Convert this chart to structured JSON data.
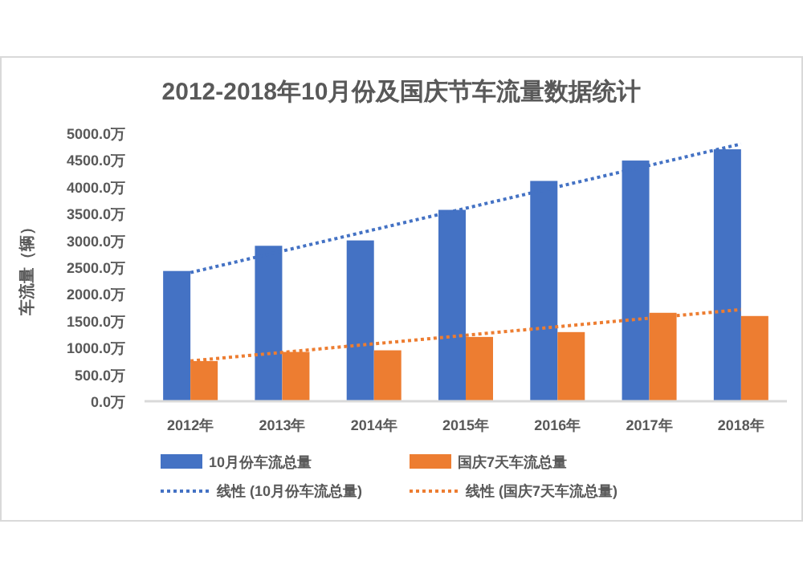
{
  "chart_data": {
    "type": "bar",
    "title": "2012-2018年10月份及国庆节车流量数据统计",
    "ylabel": "车流量（辆）",
    "categories": [
      "2012年",
      "2013年",
      "2014年",
      "2015年",
      "2016年",
      "2017年",
      "2018年"
    ],
    "series": [
      {
        "name": "10月份车流总量",
        "color": "#4472c4",
        "values": [
          2430,
          2900,
          3000,
          3570,
          4110,
          4490,
          4700
        ]
      },
      {
        "name": "国庆7天车流总量",
        "color": "#ed7d31",
        "values": [
          750,
          920,
          950,
          1200,
          1290,
          1650,
          1590
        ]
      },
      {
        "name": "线性 (10月份车流总量)",
        "type": "line",
        "line_style": "dotted",
        "color": "#4472c4",
        "x": [
          "2012年",
          "2018年"
        ],
        "values": [
          2400,
          4800
        ]
      },
      {
        "name": "线性 (国庆7天车流总量)",
        "type": "line",
        "line_style": "dotted",
        "color": "#ed7d31",
        "x": [
          "2012年",
          "2018年"
        ],
        "values": [
          750,
          1710
        ]
      }
    ],
    "ylim": [
      0,
      5000
    ],
    "yticks": [
      {
        "value": 0,
        "label": "0.0万"
      },
      {
        "value": 500,
        "label": "500.0万"
      },
      {
        "value": 1000,
        "label": "1000.0万"
      },
      {
        "value": 1500,
        "label": "1500.0万"
      },
      {
        "value": 2000,
        "label": "2000.0万"
      },
      {
        "value": 2500,
        "label": "2500.0万"
      },
      {
        "value": 3000,
        "label": "3000.0万"
      },
      {
        "value": 3500,
        "label": "3500.0万"
      },
      {
        "value": 4000,
        "label": "4000.0万"
      },
      {
        "value": 4500,
        "label": "4500.0万"
      },
      {
        "value": 5000,
        "label": "5000.0万"
      }
    ],
    "grid": false,
    "legend": "bottom"
  }
}
